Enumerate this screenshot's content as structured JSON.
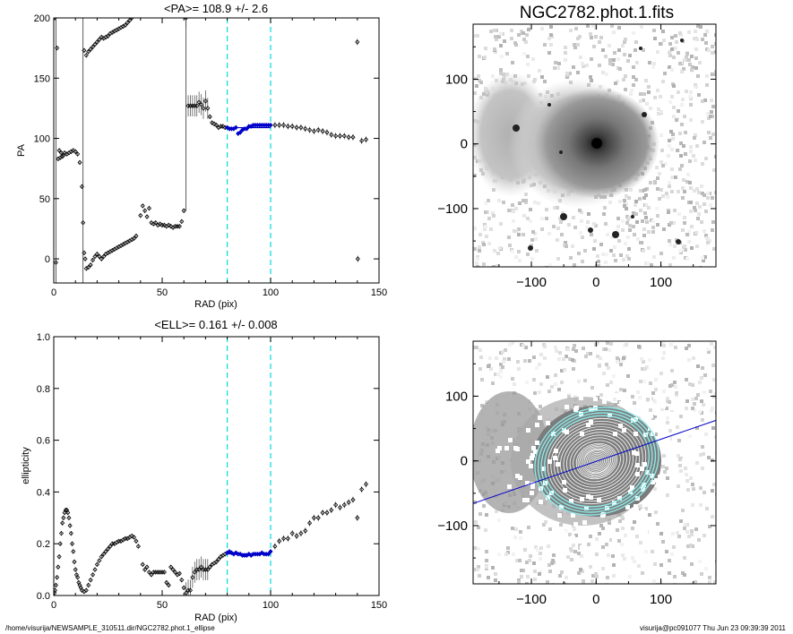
{
  "chart_data": [
    {
      "type": "scatter",
      "panel": "pa-profile",
      "title": "<PA>= 108.9 +/-   2.6",
      "xlabel": "RAD (pix)",
      "ylabel": "PA",
      "xlim": [
        0,
        150
      ],
      "ylim": [
        -20,
        200
      ],
      "xticks": [
        0,
        50,
        100,
        150
      ],
      "yticks": [
        0,
        50,
        100,
        150,
        200
      ],
      "fit_range": [
        80,
        100
      ],
      "mean_value": 108.9,
      "points": [
        [
          0.5,
          200
        ],
        [
          1,
          -3
        ],
        [
          1.5,
          175
        ],
        [
          2,
          83
        ],
        [
          2.5,
          90
        ],
        [
          3,
          84
        ],
        [
          3.5,
          88
        ],
        [
          4,
          85
        ],
        [
          4.5,
          86
        ],
        [
          5,
          88
        ],
        [
          6,
          87
        ],
        [
          7,
          88
        ],
        [
          8,
          89
        ],
        [
          9,
          90
        ],
        [
          10,
          89
        ],
        [
          11,
          87
        ],
        [
          12,
          80
        ],
        [
          13,
          60
        ],
        [
          13.5,
          30
        ],
        [
          14,
          5
        ],
        [
          14.5,
          0
        ],
        [
          15,
          -8
        ],
        [
          16,
          -7
        ],
        [
          17,
          -5
        ],
        [
          18,
          -1
        ],
        [
          19,
          2
        ],
        [
          20,
          4
        ],
        [
          21,
          2
        ],
        [
          22,
          0
        ],
        [
          23,
          2
        ],
        [
          24,
          4
        ],
        [
          25,
          5
        ],
        [
          26,
          6
        ],
        [
          27,
          7
        ],
        [
          28,
          8
        ],
        [
          29,
          9
        ],
        [
          30,
          10
        ],
        [
          31,
          11
        ],
        [
          32,
          12
        ],
        [
          33,
          13
        ],
        [
          34,
          14
        ],
        [
          35,
          15
        ],
        [
          36,
          16
        ],
        [
          37,
          17
        ],
        [
          38,
          19
        ],
        [
          40,
          36
        ],
        [
          41,
          44
        ],
        [
          42,
          40
        ],
        [
          43,
          35
        ],
        [
          44,
          42
        ],
        [
          45,
          30
        ],
        [
          46,
          29
        ],
        [
          47,
          30
        ],
        [
          48,
          28
        ],
        [
          49,
          29
        ],
        [
          50,
          28
        ],
        [
          51,
          28
        ],
        [
          52,
          27
        ],
        [
          53,
          28
        ],
        [
          54,
          27
        ],
        [
          55,
          26
        ],
        [
          56,
          27
        ],
        [
          57,
          27
        ],
        [
          58,
          27
        ],
        [
          59,
          31
        ],
        [
          60,
          40
        ],
        [
          61,
          200
        ],
        [
          62,
          127
        ],
        [
          63,
          127
        ],
        [
          64,
          127
        ],
        [
          65,
          127
        ],
        [
          66,
          127
        ],
        [
          67,
          130
        ],
        [
          68,
          128
        ],
        [
          69,
          125
        ],
        [
          70,
          131
        ],
        [
          71,
          125
        ],
        [
          72,
          118
        ],
        [
          73,
          113
        ],
        [
          74,
          112
        ],
        [
          75,
          111
        ],
        [
          76,
          109
        ],
        [
          77,
          110
        ],
        [
          78,
          110
        ],
        [
          79,
          109
        ],
        [
          80,
          109
        ],
        [
          81,
          108
        ],
        [
          82,
          108
        ],
        [
          83,
          108
        ],
        [
          84,
          109
        ],
        [
          85,
          104
        ],
        [
          86,
          105
        ],
        [
          87,
          107
        ],
        [
          88,
          108
        ],
        [
          89,
          108
        ],
        [
          90,
          110
        ],
        [
          91,
          110
        ],
        [
          92,
          111
        ],
        [
          93,
          111
        ],
        [
          94,
          111
        ],
        [
          95,
          111
        ],
        [
          96,
          111
        ],
        [
          97,
          111
        ],
        [
          98,
          111
        ],
        [
          99,
          111
        ],
        [
          100,
          111
        ],
        [
          102,
          111
        ],
        [
          104,
          111
        ],
        [
          106,
          111
        ],
        [
          108,
          110
        ],
        [
          110,
          110
        ],
        [
          112,
          109
        ],
        [
          114,
          109
        ],
        [
          116,
          108
        ],
        [
          118,
          107
        ],
        [
          120,
          106
        ],
        [
          122,
          107
        ],
        [
          124,
          106
        ],
        [
          126,
          105
        ],
        [
          128,
          103
        ],
        [
          130,
          102
        ],
        [
          132,
          102
        ],
        [
          134,
          102
        ],
        [
          136,
          101
        ],
        [
          138,
          101
        ],
        [
          140,
          180
        ],
        [
          140.2,
          0
        ],
        [
          142,
          98
        ],
        [
          144,
          99
        ]
      ],
      "branch_wrapped": [
        [
          14,
          173
        ],
        [
          15,
          169
        ],
        [
          16,
          172
        ],
        [
          17,
          174
        ],
        [
          18,
          176
        ],
        [
          19,
          178
        ],
        [
          20,
          180
        ],
        [
          21,
          182
        ],
        [
          22,
          184
        ],
        [
          23,
          183
        ],
        [
          24,
          184
        ],
        [
          25,
          185
        ],
        [
          26,
          187
        ],
        [
          27,
          188
        ],
        [
          28,
          189
        ],
        [
          29,
          190
        ],
        [
          30,
          191
        ],
        [
          31,
          192
        ],
        [
          32,
          193
        ],
        [
          33,
          194
        ],
        [
          34,
          196
        ],
        [
          35,
          198
        ],
        [
          36,
          200
        ]
      ]
    },
    {
      "type": "image",
      "panel": "galaxy-image",
      "title": "NGC2782.phot.1.fits",
      "xlim": [
        -190,
        185
      ],
      "ylim": [
        -190,
        185
      ],
      "xticks": [
        -100,
        0,
        100
      ],
      "yticks": [
        -100,
        0,
        100
      ],
      "colormap": "grayscale, inverted (dark = bright)"
    },
    {
      "type": "scatter",
      "panel": "ellipticity-profile",
      "title": "<ELL>= 0.161 +/-  0.008",
      "xlabel": "RAD (pix)",
      "ylabel": "ellipticity",
      "xlim": [
        0,
        150
      ],
      "ylim": [
        0,
        1
      ],
      "xticks": [
        0,
        50,
        100,
        150
      ],
      "yticks": [
        0.0,
        0.2,
        0.4,
        0.6,
        0.8,
        1.0
      ],
      "ytick_labels": [
        "0.0",
        "0.2",
        "0.4",
        "0.6",
        "0.8",
        "1.0"
      ],
      "fit_range": [
        80,
        100
      ],
      "mean_value": 0.161,
      "points": [
        [
          0.3,
          0.01
        ],
        [
          0.6,
          0.02
        ],
        [
          1,
          0.04
        ],
        [
          1.5,
          0.07
        ],
        [
          2,
          0.11
        ],
        [
          2.5,
          0.15
        ],
        [
          3,
          0.2
        ],
        [
          3.5,
          0.24
        ],
        [
          4,
          0.28
        ],
        [
          4.5,
          0.3
        ],
        [
          5,
          0.32
        ],
        [
          5.5,
          0.33
        ],
        [
          6,
          0.33
        ],
        [
          6.5,
          0.32
        ],
        [
          7,
          0.3
        ],
        [
          7.5,
          0.27
        ],
        [
          8,
          0.24
        ],
        [
          8.5,
          0.2
        ],
        [
          9,
          0.17
        ],
        [
          9.5,
          0.13
        ],
        [
          10,
          0.1
        ],
        [
          10.5,
          0.08
        ],
        [
          11,
          0.07
        ],
        [
          11.5,
          0.05
        ],
        [
          12,
          0.04
        ],
        [
          12.5,
          0.03
        ],
        [
          13,
          0.02
        ],
        [
          14,
          0.015
        ],
        [
          15,
          0.02
        ],
        [
          16,
          0.04
        ],
        [
          17,
          0.06
        ],
        [
          18,
          0.08
        ],
        [
          19,
          0.1
        ],
        [
          20,
          0.12
        ],
        [
          21,
          0.135
        ],
        [
          22,
          0.15
        ],
        [
          23,
          0.16
        ],
        [
          24,
          0.17
        ],
        [
          25,
          0.18
        ],
        [
          26,
          0.19
        ],
        [
          27,
          0.2
        ],
        [
          28,
          0.2
        ],
        [
          29,
          0.205
        ],
        [
          30,
          0.21
        ],
        [
          31,
          0.21
        ],
        [
          32,
          0.215
        ],
        [
          33,
          0.22
        ],
        [
          34,
          0.22
        ],
        [
          35,
          0.225
        ],
        [
          36,
          0.23
        ],
        [
          37,
          0.225
        ],
        [
          38,
          0.21
        ],
        [
          39,
          0.19
        ],
        [
          41,
          0.12
        ],
        [
          42,
          0.1
        ],
        [
          43,
          0.11
        ],
        [
          44,
          0.09
        ],
        [
          45,
          0.08
        ],
        [
          46,
          0.09
        ],
        [
          47,
          0.09
        ],
        [
          48,
          0.09
        ],
        [
          49,
          0.09
        ],
        [
          50,
          0.09
        ],
        [
          51,
          0.09
        ],
        [
          52,
          0.05
        ],
        [
          53,
          0.04
        ],
        [
          54,
          0.11
        ],
        [
          55,
          0.1
        ],
        [
          56,
          0.09
        ],
        [
          57,
          0.08
        ],
        [
          58,
          0.085
        ],
        [
          59,
          0.06
        ],
        [
          60,
          0.03
        ],
        [
          61,
          0.01
        ],
        [
          62,
          0.02
        ],
        [
          63,
          0.02
        ],
        [
          64,
          0.07
        ],
        [
          65,
          0.09
        ],
        [
          66,
          0.1
        ],
        [
          67,
          0.1
        ],
        [
          68,
          0.11
        ],
        [
          69,
          0.1
        ],
        [
          70,
          0.1
        ],
        [
          71,
          0.1
        ],
        [
          72,
          0.11
        ],
        [
          73,
          0.12
        ],
        [
          74,
          0.125
        ],
        [
          75,
          0.13
        ],
        [
          76,
          0.14
        ],
        [
          77,
          0.15
        ],
        [
          78,
          0.155
        ],
        [
          79,
          0.16
        ],
        [
          80,
          0.165
        ],
        [
          81,
          0.17
        ],
        [
          82,
          0.165
        ],
        [
          83,
          0.16
        ],
        [
          84,
          0.165
        ],
        [
          85,
          0.16
        ],
        [
          86,
          0.16
        ],
        [
          87,
          0.155
        ],
        [
          88,
          0.155
        ],
        [
          89,
          0.155
        ],
        [
          90,
          0.16
        ],
        [
          91,
          0.155
        ],
        [
          92,
          0.16
        ],
        [
          93,
          0.16
        ],
        [
          94,
          0.16
        ],
        [
          95,
          0.16
        ],
        [
          96,
          0.165
        ],
        [
          97,
          0.16
        ],
        [
          98,
          0.16
        ],
        [
          99,
          0.16
        ],
        [
          100,
          0.17
        ],
        [
          102,
          0.19
        ],
        [
          104,
          0.21
        ],
        [
          106,
          0.22
        ],
        [
          108,
          0.22
        ],
        [
          110,
          0.24
        ],
        [
          112,
          0.23
        ],
        [
          114,
          0.24
        ],
        [
          116,
          0.25
        ],
        [
          118,
          0.28
        ],
        [
          120,
          0.3
        ],
        [
          122,
          0.3
        ],
        [
          124,
          0.32
        ],
        [
          126,
          0.32
        ],
        [
          128,
          0.33
        ],
        [
          130,
          0.35
        ],
        [
          132,
          0.34
        ],
        [
          134,
          0.35
        ],
        [
          136,
          0.36
        ],
        [
          138,
          0.37
        ],
        [
          140,
          0.3
        ],
        [
          142,
          0.41
        ],
        [
          144,
          0.43
        ]
      ]
    },
    {
      "type": "image",
      "panel": "isophote-overlay",
      "title": "",
      "xlim": [
        -190,
        185
      ],
      "ylim": [
        -190,
        185
      ],
      "xticks": [
        -100,
        0,
        100
      ],
      "yticks": [
        -100,
        0,
        100
      ],
      "position_angle_line_deg": 108.9,
      "mean_ellipticity": 0.161,
      "fit_range": [
        80,
        100
      ]
    }
  ],
  "footer": {
    "left": "/home/visurija/NEWSAMPLE_310511.dir/NGC2782.phot.1_ellipse",
    "right": "visurija@pc091077  Thu Jun 23 09:39:39 2011"
  },
  "colors": {
    "markers": "#000000",
    "fit_band": "#00dddd",
    "fit_line": "#0000c8",
    "isophote": "#ffffff",
    "fit_isophote": "#8ee8e8"
  }
}
